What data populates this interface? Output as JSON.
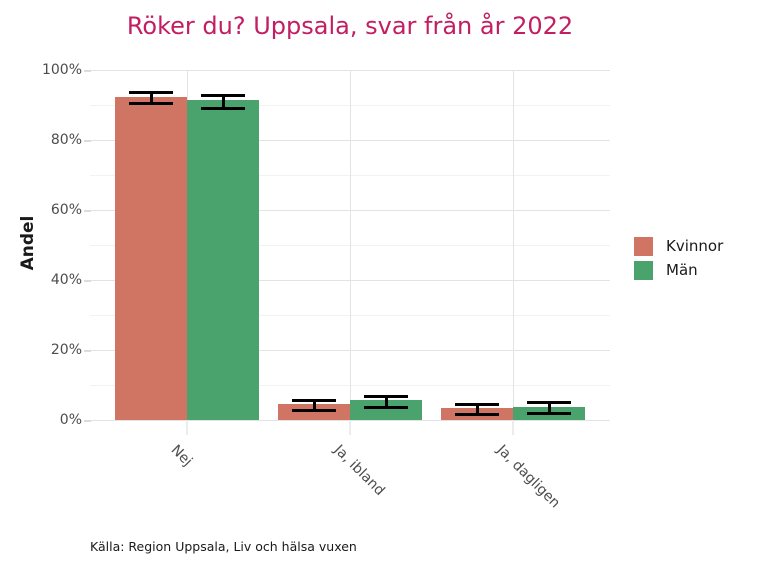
{
  "title": "Röker du? Uppsala, svar från år 2022",
  "caption": "Källa: Region Uppsala, Liv och hälsa vuxen",
  "y_axis": {
    "label": "Andel"
  },
  "legend": {
    "items": [
      {
        "label": "Kvinnor",
        "color": "#D07464"
      },
      {
        "label": "Män",
        "color": "#4AA36C"
      }
    ]
  },
  "colors": {
    "title": "#C21E63",
    "kvinnor": "#D07464",
    "man": "#4AA36C",
    "grid_major": "#E3E3E3",
    "grid_minor": "#F2F2F2",
    "axis_text": "#4D4D4D",
    "errorbar": "#000000"
  },
  "chart_data": {
    "type": "bar",
    "categories": [
      "Nej",
      "Ja, ibland",
      "Ja, dagligen"
    ],
    "series": [
      {
        "name": "Kvinnor",
        "color": "#D07464",
        "values": [
          92.3,
          4.5,
          3.3
        ],
        "ci_low": [
          90.9,
          3.2,
          2.0
        ],
        "ci_high": [
          94.0,
          5.9,
          4.8
        ]
      },
      {
        "name": "Män",
        "color": "#4AA36C",
        "values": [
          91.3,
          5.6,
          3.7
        ],
        "ci_low": [
          89.4,
          4.0,
          2.4
        ],
        "ci_high": [
          93.1,
          7.2,
          5.3
        ]
      }
    ],
    "title": "Röker du? Uppsala, svar från år 2022",
    "xlabel": "",
    "ylabel": "Andel",
    "ylim": [
      0,
      100
    ],
    "ytick_values_percent": [
      0,
      20,
      40,
      60,
      80,
      100
    ],
    "ytick_minor_percent": [
      10,
      30,
      50,
      70,
      90
    ],
    "ytick_label_format": "percent",
    "grid": "horizontal major+minor, vertical major at category centers",
    "legend_position": "right",
    "error_bars": true
  }
}
